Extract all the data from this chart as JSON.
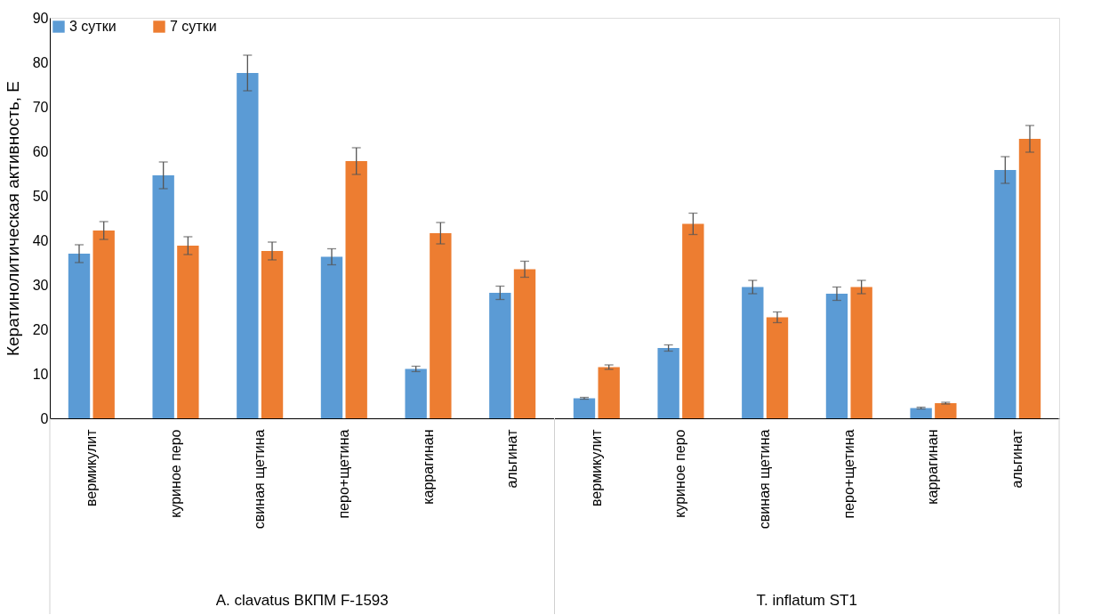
{
  "chart_data": {
    "type": "bar",
    "ylabel": "Кератинолитическая активность, Е",
    "categories": [
      "вермикулит",
      "куриное перо",
      "свиная щетина",
      "перо+щетина",
      "каррагинан",
      "альгинат",
      "вермикулит",
      "куриное перо",
      "свиная щетина",
      "перо+щетина",
      "каррагинан",
      "альгинат"
    ],
    "series": [
      {
        "name": "3 сутки",
        "color": "#5b9bd5",
        "values": [
          37.0,
          54.6,
          77.6,
          36.3,
          11.1,
          28.2,
          4.5,
          15.8,
          29.5,
          28.0,
          2.3,
          55.8
        ],
        "errors": [
          2.0,
          3.0,
          4.0,
          1.8,
          0.6,
          1.5,
          0.2,
          0.7,
          1.5,
          1.5,
          0.2,
          3.0
        ]
      },
      {
        "name": "7 сутки",
        "color": "#ed7d31",
        "values": [
          42.2,
          38.8,
          37.6,
          57.8,
          41.6,
          33.5,
          11.5,
          43.7,
          22.7,
          29.5,
          3.4,
          62.8
        ],
        "errors": [
          2.0,
          2.0,
          2.0,
          3.0,
          2.4,
          1.8,
          0.5,
          2.4,
          1.2,
          1.5,
          0.2,
          3.0
        ]
      }
    ],
    "ylim": [
      0,
      90
    ],
    "yticks": [
      0,
      10,
      20,
      30,
      40,
      50,
      60,
      70,
      80,
      90
    ],
    "grid": false,
    "legend": "top left",
    "annotations": [
      "A. clavatus ВКПМ F-1593",
      "T. inflatum ST1"
    ]
  }
}
